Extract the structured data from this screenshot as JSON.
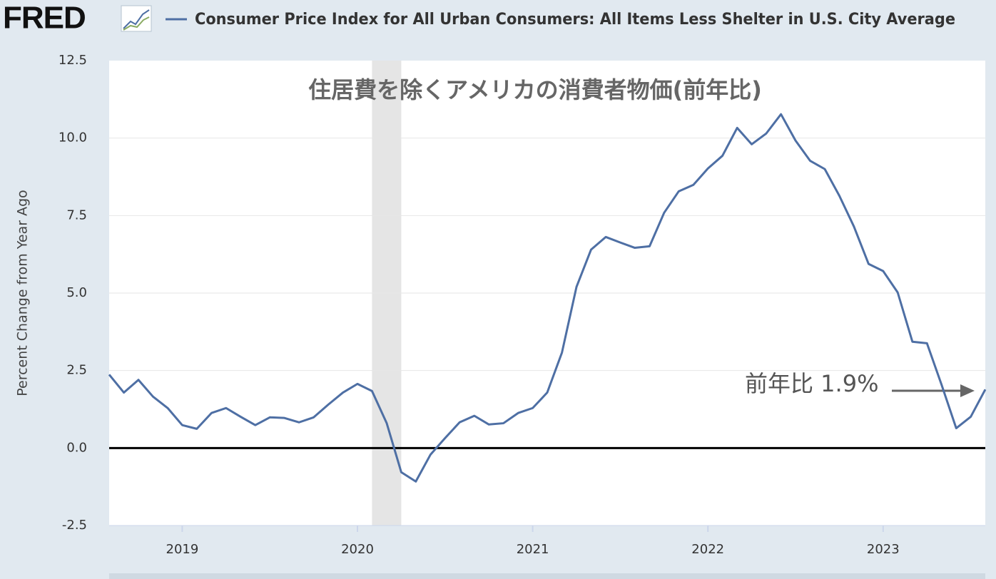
{
  "chart_data": {
    "type": "line",
    "logo": "FRED",
    "title": "住居費を除くアメリカの消費者物価(前年比)",
    "annotation": "前年比 1.9%",
    "ylabel": "Percent Change from Year Ago",
    "x": [
      2018.583,
      2018.667,
      2018.75,
      2018.833,
      2018.917,
      2019.0,
      2019.083,
      2019.167,
      2019.25,
      2019.333,
      2019.417,
      2019.5,
      2019.583,
      2019.667,
      2019.75,
      2019.833,
      2019.917,
      2020.0,
      2020.083,
      2020.167,
      2020.25,
      2020.333,
      2020.417,
      2020.5,
      2020.583,
      2020.667,
      2020.75,
      2020.833,
      2020.917,
      2021.0,
      2021.083,
      2021.167,
      2021.25,
      2021.333,
      2021.417,
      2021.5,
      2021.583,
      2021.667,
      2021.75,
      2021.833,
      2021.917,
      2022.0,
      2022.083,
      2022.167,
      2022.25,
      2022.333,
      2022.417,
      2022.5,
      2022.583,
      2022.667,
      2022.75,
      2022.833,
      2022.917,
      2023.0,
      2023.083,
      2023.167,
      2023.25,
      2023.333,
      2023.417,
      2023.5,
      2023.583
    ],
    "series": [
      {
        "name": "Consumer Price Index for All Urban Consumers: All Items Less Shelter in U.S. City Average",
        "color": "#4e6fa4",
        "values": [
          2.37,
          1.79,
          2.2,
          1.66,
          1.29,
          0.74,
          0.62,
          1.13,
          1.29,
          1.01,
          0.74,
          0.99,
          0.97,
          0.83,
          0.99,
          1.4,
          1.79,
          2.07,
          1.84,
          0.8,
          -0.78,
          -1.08,
          -0.21,
          0.32,
          0.83,
          1.04,
          0.76,
          0.8,
          1.13,
          1.29,
          1.79,
          3.08,
          5.2,
          6.4,
          6.81,
          6.63,
          6.46,
          6.51,
          7.59,
          8.28,
          8.49,
          9.02,
          9.43,
          10.33,
          9.8,
          10.15,
          10.77,
          9.92,
          9.27,
          9.0,
          8.14,
          7.15,
          5.94,
          5.71,
          5.02,
          3.43,
          3.38,
          2.05,
          0.64,
          1.01,
          1.89
        ]
      }
    ],
    "recessions": [
      [
        2020.083,
        2020.25
      ]
    ],
    "xlim": [
      2018.583,
      2023.583
    ],
    "xticks": [
      2019,
      2020,
      2021,
      2022,
      2023
    ],
    "ylim": [
      -2.5,
      12.5
    ],
    "yticks": [
      -2.5,
      {
        "value": 0,
        "label": "0.0"
      },
      2.5,
      {
        "value": 5,
        "label": "5.0"
      },
      7.5,
      {
        "value": 10,
        "label": "10.0"
      },
      12.5
    ],
    "grid": true
  }
}
